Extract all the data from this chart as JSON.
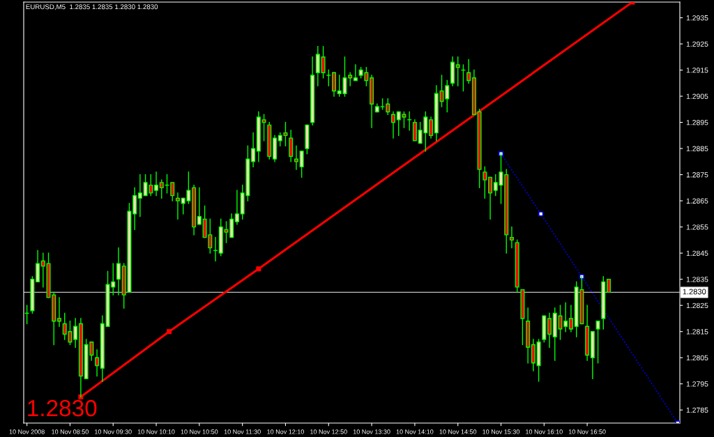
{
  "chart_data": {
    "type": "candlestick",
    "title": "EURUSD,M5  1.2835 1.2835 1.2830 1.2830",
    "color": "#00ff00",
    "colors": [
      "#00ff00",
      "#f5deb3",
      "#f5deb3",
      "#ff0000",
      "#ff0000",
      "#ff0000",
      "#ff0000",
      "#ff0000",
      "#ff0000",
      "#f5deb3",
      "#ff0000",
      "#f5deb3",
      "#ff0000",
      "#ff0000",
      "#f5deb3",
      "#f5deb3",
      "#f5deb3",
      "#f5deb3",
      "#ff0000",
      "#f5deb3",
      "#f5deb3",
      "#f5deb3",
      "#f5deb3",
      "#ff0000",
      "#f5deb3",
      "#ff0000",
      "#00ff00",
      "#ff0000",
      "#ff0000",
      "#f5deb3",
      "#f5deb3",
      "#ff0000",
      "#f5deb3",
      "#ff0000",
      "#ff0000",
      "#00ff00",
      "#f5deb3",
      "#ff0000",
      "#f5deb3",
      "#f5deb3",
      "#f5deb3",
      "#f5deb3",
      "#f5deb3",
      "#f5deb3",
      "#ff0000",
      "#ff0000",
      "#f5deb3",
      "#f5deb3",
      "#ff0000",
      "#ff0000",
      "#ff0000",
      "#f5deb3",
      "#f5deb3",
      "#f5deb3",
      "#f5deb3",
      "#ff0000",
      "#00ff00",
      "#ff0000",
      "#f5deb3",
      "#f5deb3",
      "#ff0000",
      "#f5deb3",
      "#f5deb3",
      "#ff0000",
      "#ff0000",
      "#f5deb3",
      "#00ff00",
      "#ff0000",
      "#ff0000",
      "#f5deb3",
      "#ff0000",
      "#00ff00",
      "#ff0000",
      "#f5deb3",
      "#f5deb3",
      "#ff0000",
      "#f5deb3",
      "#ff0000",
      "#f5deb3",
      "#f5deb3",
      "#ff0000",
      "#00ff00",
      "#ff0000",
      "#ff0000",
      "#ff0000",
      "#ff0000",
      "#ff0000",
      "#f5deb3",
      "#f5deb3",
      "#ff0000",
      "#ff0000",
      "#ff0000",
      "#ff0000",
      "#ff0000",
      "#ff0000",
      "#f5deb3",
      "#f5deb3",
      "#ff0000",
      "#f5deb3",
      "#ff0000",
      "#f5deb3",
      "#ff0000",
      "#f5deb3",
      "#ff0000",
      "#ff0000",
      "#f5deb3",
      "#f5deb3",
      "#f5deb3",
      "#ff0000"
    ],
    "x": [
      "2008-11-10T08:10",
      "2008-11-10T08:15",
      "2008-11-10T08:20",
      "2008-11-10T08:25",
      "2008-11-10T08:30",
      "2008-11-10T08:35",
      "2008-11-10T08:40",
      "2008-11-10T08:45",
      "2008-11-10T08:50",
      "2008-11-10T08:55",
      "2008-11-10T09:00",
      "2008-11-10T09:05",
      "2008-11-10T09:10",
      "2008-11-10T09:15",
      "2008-11-10T09:20",
      "2008-11-10T09:25",
      "2008-11-10T09:30",
      "2008-11-10T09:35",
      "2008-11-10T09:40",
      "2008-11-10T09:45",
      "2008-11-10T09:50",
      "2008-11-10T09:55",
      "2008-11-10T10:00",
      "2008-11-10T10:05",
      "2008-11-10T10:10",
      "2008-11-10T10:15",
      "2008-11-10T10:20",
      "2008-11-10T10:25",
      "2008-11-10T10:30",
      "2008-11-10T10:35",
      "2008-11-10T10:40",
      "2008-11-10T10:45",
      "2008-11-10T10:50",
      "2008-11-10T10:55",
      "2008-11-10T11:00",
      "2008-11-10T11:05",
      "2008-11-10T11:10",
      "2008-11-10T11:15",
      "2008-11-10T11:20",
      "2008-11-10T11:25",
      "2008-11-10T11:30",
      "2008-11-10T11:35",
      "2008-11-10T11:40",
      "2008-11-10T11:45",
      "2008-11-10T11:50",
      "2008-11-10T11:55",
      "2008-11-10T12:00",
      "2008-11-10T12:05",
      "2008-11-10T12:10",
      "2008-11-10T12:15",
      "2008-11-10T12:20",
      "2008-11-10T12:25",
      "2008-11-10T12:30",
      "2008-11-10T12:35",
      "2008-11-10T12:40",
      "2008-11-10T12:45",
      "2008-11-10T12:50",
      "2008-11-10T12:55",
      "2008-11-10T13:00",
      "2008-11-10T13:05",
      "2008-11-10T13:10",
      "2008-11-10T13:15",
      "2008-11-10T13:20",
      "2008-11-10T13:25",
      "2008-11-10T13:30",
      "2008-11-10T13:35",
      "2008-11-10T13:40",
      "2008-11-10T13:45",
      "2008-11-10T13:50",
      "2008-11-10T13:55",
      "2008-11-10T14:00",
      "2008-11-10T14:05",
      "2008-11-10T14:10",
      "2008-11-10T14:15",
      "2008-11-10T14:20",
      "2008-11-10T14:25",
      "2008-11-10T14:30",
      "2008-11-10T14:35",
      "2008-11-10T14:40",
      "2008-11-10T14:45",
      "2008-11-10T14:50",
      "2008-11-10T14:55",
      "2008-11-10T15:00",
      "2008-11-10T15:05",
      "2008-11-10T15:10",
      "2008-11-10T15:15",
      "2008-11-10T15:20",
      "2008-11-10T15:25",
      "2008-11-10T15:30",
      "2008-11-10T15:35",
      "2008-11-10T15:40",
      "2008-11-10T15:45",
      "2008-11-10T15:50",
      "2008-11-10T15:55",
      "2008-11-10T16:00",
      "2008-11-10T16:05",
      "2008-11-10T16:10",
      "2008-11-10T16:15",
      "2008-11-10T16:20",
      "2008-11-10T16:25",
      "2008-11-10T16:30",
      "2008-11-10T16:35",
      "2008-11-10T16:40",
      "2008-11-10T16:45",
      "2008-11-10T16:50",
      "2008-11-10T16:55",
      "2008-11-10T17:00",
      "2008-11-10T17:05",
      "2008-11-10T17:10"
    ],
    "ohlc": [
      [
        1.2822,
        1.2825,
        1.2818,
        1.2822
      ],
      [
        1.2823,
        1.2836,
        1.2822,
        1.2835
      ],
      [
        1.2834,
        1.2846,
        1.2834,
        1.2841
      ],
      [
        1.2842,
        1.2845,
        1.2832,
        1.284
      ],
      [
        1.2841,
        1.2845,
        1.2828,
        1.2828
      ],
      [
        1.2829,
        1.283,
        1.281,
        1.2819
      ],
      [
        1.282,
        1.2828,
        1.2817,
        1.2819
      ],
      [
        1.2818,
        1.2822,
        1.2812,
        1.2814
      ],
      [
        1.2815,
        1.2819,
        1.281,
        1.2811
      ],
      [
        1.2812,
        1.282,
        1.2809,
        1.2817
      ],
      [
        1.2818,
        1.282,
        1.279,
        1.2798
      ],
      [
        1.2797,
        1.2812,
        1.2797,
        1.281
      ],
      [
        1.2811,
        1.2811,
        1.2804,
        1.2806
      ],
      [
        1.2805,
        1.2808,
        1.2798,
        1.2802
      ],
      [
        1.2801,
        1.2821,
        1.2796,
        1.2818
      ],
      [
        1.2817,
        1.2838,
        1.2817,
        1.2833
      ],
      [
        1.2832,
        1.2841,
        1.2829,
        1.2834
      ],
      [
        1.2835,
        1.2847,
        1.2829,
        1.2841
      ],
      [
        1.284,
        1.2841,
        1.2824,
        1.2829
      ],
      [
        1.283,
        1.2864,
        1.283,
        1.2861
      ],
      [
        1.286,
        1.287,
        1.2854,
        1.2867
      ],
      [
        1.2866,
        1.2875,
        1.2859,
        1.2868
      ],
      [
        1.2867,
        1.2875,
        1.2867,
        1.2872
      ],
      [
        1.2871,
        1.2875,
        1.2867,
        1.2868
      ],
      [
        1.2869,
        1.2876,
        1.2867,
        1.2871
      ],
      [
        1.2872,
        1.2873,
        1.2866,
        1.287
      ],
      [
        1.2871,
        1.2875,
        1.2868,
        1.2871
      ],
      [
        1.2872,
        1.2872,
        1.2865,
        1.2867
      ],
      [
        1.2866,
        1.2868,
        1.2858,
        1.2865
      ],
      [
        1.2864,
        1.2866,
        1.286,
        1.2866
      ],
      [
        1.2865,
        1.2876,
        1.2864,
        1.2869
      ],
      [
        1.287,
        1.2871,
        1.2852,
        1.2855
      ],
      [
        1.2856,
        1.287,
        1.2856,
        1.2859
      ],
      [
        1.2858,
        1.2863,
        1.2851,
        1.2851
      ],
      [
        1.2852,
        1.2858,
        1.2845,
        1.2847
      ],
      [
        1.2846,
        1.2851,
        1.2842,
        1.2846
      ],
      [
        1.2845,
        1.2858,
        1.2844,
        1.2855
      ],
      [
        1.2854,
        1.2857,
        1.2849,
        1.2853
      ],
      [
        1.2851,
        1.286,
        1.2851,
        1.2858
      ],
      [
        1.2857,
        1.2869,
        1.2856,
        1.286
      ],
      [
        1.286,
        1.2871,
        1.2858,
        1.2868
      ],
      [
        1.2867,
        1.2886,
        1.2865,
        1.2881
      ],
      [
        1.288,
        1.2891,
        1.2878,
        1.2885
      ],
      [
        1.2884,
        1.2899,
        1.288,
        1.2897
      ],
      [
        1.2896,
        1.2898,
        1.2888,
        1.2895
      ],
      [
        1.2894,
        1.2895,
        1.2881,
        1.2882
      ],
      [
        1.2881,
        1.289,
        1.288,
        1.2889
      ],
      [
        1.2888,
        1.2891,
        1.2886,
        1.289
      ],
      [
        1.2891,
        1.2895,
        1.2886,
        1.289
      ],
      [
        1.2889,
        1.2892,
        1.288,
        1.2882
      ],
      [
        1.2881,
        1.2886,
        1.2877,
        1.288
      ],
      [
        1.2878,
        1.2884,
        1.2874,
        1.2884
      ],
      [
        1.2885,
        1.2894,
        1.2883,
        1.2894
      ],
      [
        1.2895,
        1.292,
        1.2894,
        1.2913
      ],
      [
        1.2914,
        1.2924,
        1.2909,
        1.2921
      ],
      [
        1.292,
        1.2924,
        1.2912,
        1.2914
      ],
      [
        1.2913,
        1.2915,
        1.2909,
        1.2913
      ],
      [
        1.2914,
        1.2914,
        1.2905,
        1.2907
      ],
      [
        1.2906,
        1.2913,
        1.2905,
        1.2907
      ],
      [
        1.2906,
        1.292,
        1.2905,
        1.2912
      ],
      [
        1.2913,
        1.2914,
        1.2909,
        1.2912
      ],
      [
        1.2911,
        1.2917,
        1.2911,
        1.2912
      ],
      [
        1.2913,
        1.2916,
        1.2912,
        1.2915
      ],
      [
        1.2914,
        1.2916,
        1.2909,
        1.2911
      ],
      [
        1.2912,
        1.2913,
        1.2893,
        1.2902
      ],
      [
        1.2899,
        1.2902,
        1.2899,
        1.2901
      ],
      [
        1.2901,
        1.2904,
        1.29,
        1.2901
      ],
      [
        1.2902,
        1.2904,
        1.2898,
        1.2899
      ],
      [
        1.2898,
        1.2899,
        1.2889,
        1.2895
      ],
      [
        1.2896,
        1.2899,
        1.289,
        1.2899
      ],
      [
        1.2898,
        1.2899,
        1.2893,
        1.2897
      ],
      [
        1.2896,
        1.2899,
        1.2892,
        1.2896
      ],
      [
        1.2895,
        1.2896,
        1.2888,
        1.2888
      ],
      [
        1.2887,
        1.2895,
        1.2887,
        1.2892
      ],
      [
        1.2891,
        1.2899,
        1.2884,
        1.2897
      ],
      [
        1.2896,
        1.2897,
        1.2889,
        1.289
      ],
      [
        1.2891,
        1.2909,
        1.2888,
        1.2906
      ],
      [
        1.2907,
        1.2913,
        1.2901,
        1.2903
      ],
      [
        1.2904,
        1.2911,
        1.2899,
        1.2909
      ],
      [
        1.291,
        1.292,
        1.2909,
        1.2918
      ],
      [
        1.2917,
        1.292,
        1.2909,
        1.2916
      ],
      [
        1.2915,
        1.2917,
        1.2907,
        1.2915
      ],
      [
        1.2914,
        1.2919,
        1.291,
        1.2911
      ],
      [
        1.2912,
        1.2915,
        1.2898,
        1.2898
      ],
      [
        1.2899,
        1.29,
        1.287,
        1.2877
      ],
      [
        1.2876,
        1.2878,
        1.2866,
        1.2873
      ],
      [
        1.2874,
        1.2874,
        1.2858,
        1.2868
      ],
      [
        1.2869,
        1.2875,
        1.2867,
        1.2872
      ],
      [
        1.2871,
        1.2883,
        1.2864,
        1.2876
      ],
      [
        1.2875,
        1.2877,
        1.2845,
        1.2852
      ],
      [
        1.2851,
        1.2855,
        1.2847,
        1.285
      ],
      [
        1.2849,
        1.285,
        1.283,
        1.2832
      ],
      [
        1.2831,
        1.2831,
        1.281,
        1.282
      ],
      [
        1.2819,
        1.2824,
        1.2803,
        1.2809
      ],
      [
        1.281,
        1.2812,
        1.28,
        1.2803
      ],
      [
        1.2802,
        1.2812,
        1.2796,
        1.2811
      ],
      [
        1.2812,
        1.2821,
        1.2811,
        1.2821
      ],
      [
        1.282,
        1.2822,
        1.2809,
        1.2814
      ],
      [
        1.2813,
        1.2824,
        1.2804,
        1.2822
      ],
      [
        1.2821,
        1.2825,
        1.2812,
        1.2816
      ],
      [
        1.2817,
        1.2826,
        1.2815,
        1.2819
      ],
      [
        1.282,
        1.2825,
        1.2815,
        1.2816
      ],
      [
        1.2817,
        1.2834,
        1.2813,
        1.2832
      ],
      [
        1.2831,
        1.2836,
        1.2818,
        1.2818
      ],
      [
        1.2817,
        1.2825,
        1.2804,
        1.2806
      ],
      [
        1.2805,
        1.2815,
        1.2797,
        1.2815
      ],
      [
        1.2816,
        1.2819,
        1.2803,
        1.2819
      ],
      [
        1.282,
        1.2836,
        1.2816,
        1.2834
      ],
      [
        1.2835,
        1.2835,
        1.283,
        1.283
      ]
    ],
    "series": [
      {
        "type": "line",
        "color": "#ff0000",
        "marker": "square",
        "line_style": "solid",
        "x": [
          "2008-11-10T09:00",
          "2008-11-10T10:22",
          "2008-11-10T11:45",
          "2008-11-10T17:32"
        ],
        "values": [
          1.279,
          1.2815,
          1.2839,
          1.2941
        ]
      },
      {
        "type": "line",
        "color": "#0000ff",
        "marker": "square",
        "line_style": "dotted",
        "x": [
          "2008-11-10T15:30",
          "2008-11-10T16:07",
          "2008-11-10T16:45",
          "2008-11-10T18:14"
        ],
        "values": [
          1.2883,
          1.286,
          1.2836,
          1.278
        ]
      }
    ],
    "ref_lines": [
      {
        "axis": "y",
        "value": 1.283,
        "label": "1.2830",
        "color": "#c0c0c0"
      }
    ],
    "annotations": [
      "1.2830"
    ],
    "xlim": [
      "2008-11-10T08:07",
      "2008-11-10T18:16"
    ],
    "xticks": [
      {
        "value": "2008-11-10T08:10",
        "label": "10 Nov 2008"
      },
      {
        "value": "2008-11-10T08:50",
        "label": "10 Nov 08:50"
      },
      {
        "value": "2008-11-10T09:30",
        "label": "10 Nov 09:30"
      },
      {
        "value": "2008-11-10T10:10",
        "label": "10 Nov 10:10"
      },
      {
        "value": "2008-11-10T10:50",
        "label": "10 Nov 10:50"
      },
      {
        "value": "2008-11-10T11:30",
        "label": "10 Nov 11:30"
      },
      {
        "value": "2008-11-10T12:10",
        "label": "10 Nov 12:10"
      },
      {
        "value": "2008-11-10T12:50",
        "label": "10 Nov 12:50"
      },
      {
        "value": "2008-11-10T13:30",
        "label": "10 Nov 13:30"
      },
      {
        "value": "2008-11-10T14:10",
        "label": "10 Nov 14:10"
      },
      {
        "value": "2008-11-10T14:50",
        "label": "10 Nov 14:50"
      },
      {
        "value": "2008-11-10T15:30",
        "label": "10 Nov 15:30"
      },
      {
        "value": "2008-11-10T16:10",
        "label": "10 Nov 16:10"
      },
      {
        "value": "2008-11-10T16:50",
        "label": "10 Nov 16:50"
      }
    ],
    "ylim": [
      1.278,
      1.2941
    ],
    "yticks": [
      1.2785,
      1.2795,
      1.2805,
      1.2815,
      1.2825,
      1.2835,
      1.2845,
      1.2855,
      1.2865,
      1.2875,
      1.2885,
      1.2895,
      1.2905,
      1.2915,
      1.2925,
      1.2935
    ],
    "grid": false,
    "legend": false
  }
}
